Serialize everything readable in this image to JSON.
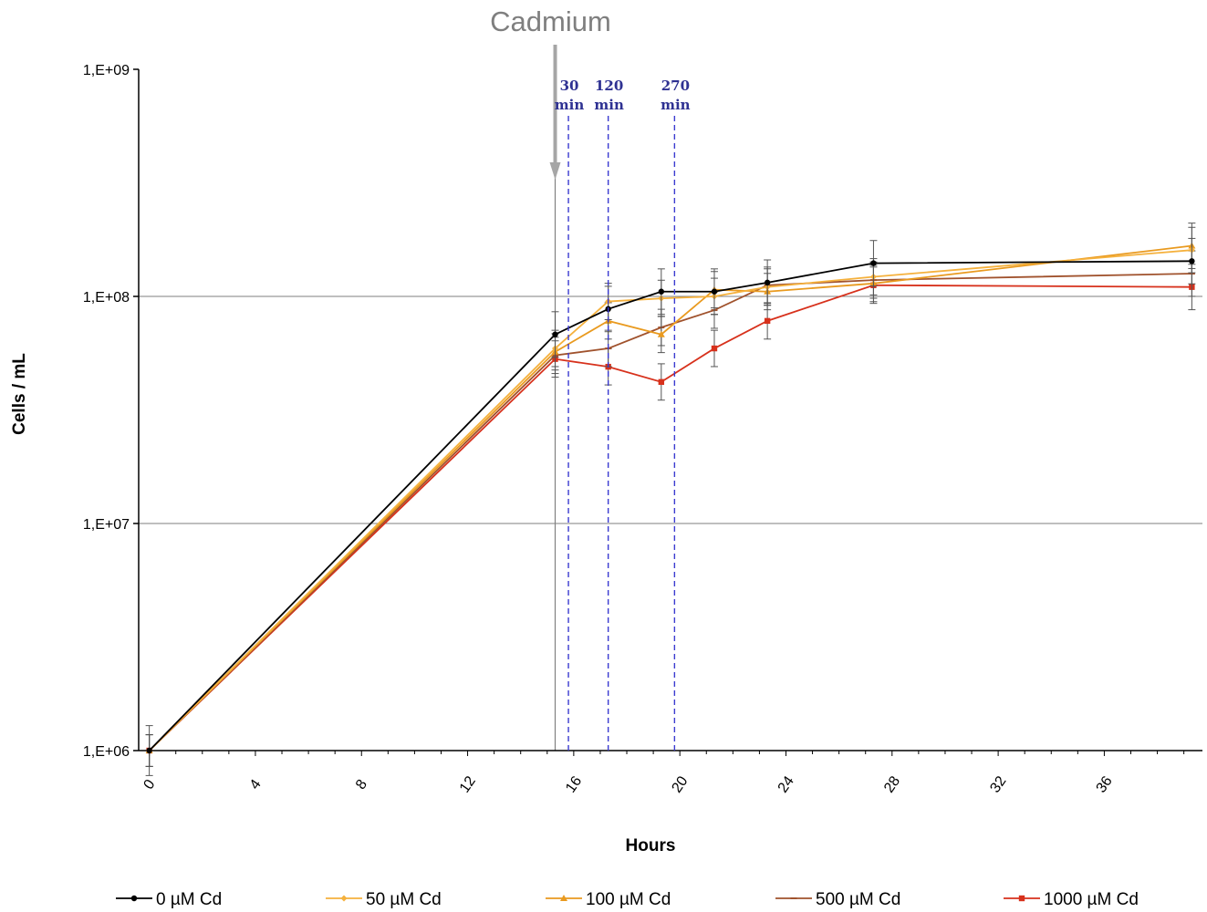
{
  "chart_data": {
    "type": "line",
    "xlabel": "Hours",
    "ylabel": "Cells / mL",
    "xlim": [
      -0.4,
      39.7
    ],
    "ylim": [
      1000000,
      1000000000
    ],
    "yscale": "log",
    "x_ticks": [
      0,
      4,
      8,
      12,
      16,
      20,
      24,
      28,
      32,
      36
    ],
    "x_tick_labels": [
      "0",
      "4",
      "8",
      "12",
      "16",
      "20",
      "24",
      "28",
      "32",
      "36"
    ],
    "y_ticks": [
      1000000,
      10000000,
      100000000,
      1000000000
    ],
    "y_tick_labels": [
      "1,E+06",
      "1,E+07",
      "1,E+08",
      "1,E+09"
    ],
    "gridlines_y": [
      10000000,
      100000000
    ],
    "legend_position": "bottom",
    "treatment_marker": {
      "x": 15.3,
      "label": "Cadmium",
      "color": "#a6a6a6"
    },
    "annotations": [
      {
        "x": 15.8,
        "line1": "30",
        "line2": "min"
      },
      {
        "x": 17.3,
        "line1": "120",
        "line2": "min"
      },
      {
        "x": 19.8,
        "line1": "270",
        "line2": "min"
      }
    ],
    "series": [
      {
        "name": "0 µM Cd",
        "color": "#000000",
        "marker": "circle",
        "x": [
          0,
          15.3,
          17.3,
          19.3,
          21.3,
          23.3,
          27.3,
          39.3
        ],
        "y": [
          1000000,
          68000000,
          88000000,
          105000000,
          105000000,
          115000000,
          140000000,
          143000000
        ],
        "err": [
          0.11,
          0.1,
          0.1,
          0.1,
          0.1,
          0.1,
          0.1,
          0.1
        ]
      },
      {
        "name": "50 µM Cd",
        "color": "#f5b13d",
        "marker": "diamond",
        "x": [
          0,
          15.3,
          17.3,
          19.3,
          21.3,
          23.3,
          27.3,
          39.3
        ],
        "y": [
          1000000,
          59000000,
          95000000,
          98000000,
          100000000,
          110000000,
          122000000,
          160000000
        ],
        "err": [
          0.07,
          0.08,
          0.08,
          0.08,
          0.08,
          0.08,
          0.08,
          0.1
        ]
      },
      {
        "name": "100 µM Cd",
        "color": "#e99a1f",
        "marker": "triangle",
        "x": [
          0,
          15.3,
          17.3,
          19.3,
          21.3,
          23.3,
          27.3,
          39.3
        ],
        "y": [
          1000000,
          57000000,
          78000000,
          68000000,
          107000000,
          105000000,
          114000000,
          167000000
        ],
        "err": [
          0.07,
          0.08,
          0.08,
          0.08,
          0.08,
          0.08,
          0.08,
          0.1
        ]
      },
      {
        "name": "500 µM Cd",
        "color": "#a0522d",
        "marker": "dash",
        "x": [
          0,
          15.3,
          17.3,
          19.3,
          21.3,
          23.3,
          27.3,
          39.3
        ],
        "y": [
          1000000,
          55000000,
          59000000,
          73000000,
          87000000,
          112000000,
          118000000,
          126000000
        ],
        "err": [
          0.07,
          0.08,
          0.08,
          0.08,
          0.08,
          0.08,
          0.08,
          0.1
        ]
      },
      {
        "name": "1000 µM Cd",
        "color": "#d7311c",
        "marker": "square",
        "x": [
          0,
          15.3,
          17.3,
          19.3,
          21.3,
          23.3,
          27.3,
          39.3
        ],
        "y": [
          1000000,
          53000000,
          49000000,
          42000000,
          59000000,
          78000000,
          112000000,
          110000000
        ],
        "err": [
          0.07,
          0.08,
          0.08,
          0.08,
          0.08,
          0.08,
          0.08,
          0.1
        ]
      }
    ]
  }
}
